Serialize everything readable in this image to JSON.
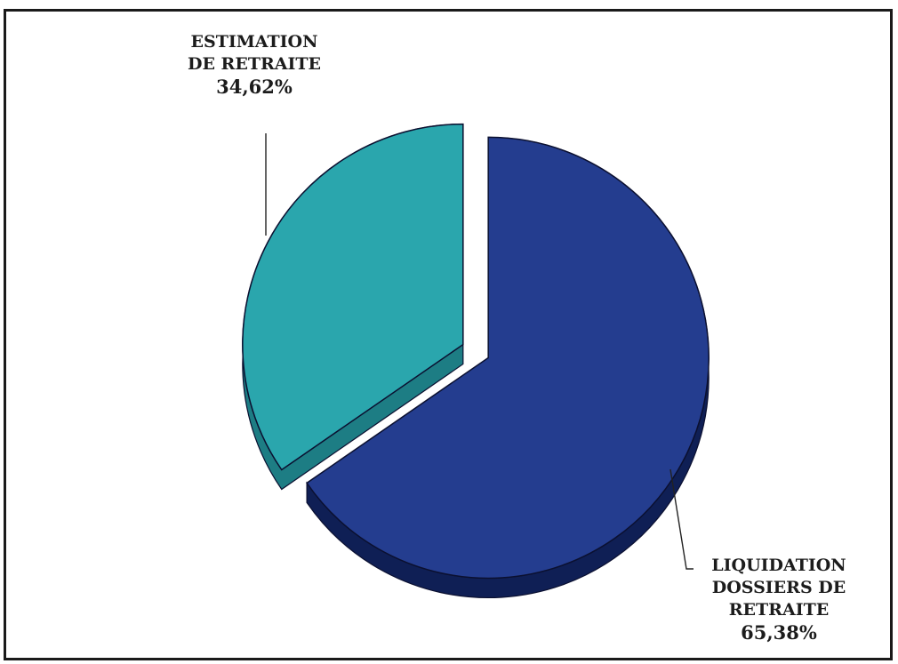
{
  "chart_data": {
    "type": "pie",
    "style": "3d-exploded",
    "title": "",
    "slices": [
      {
        "label_lines": [
          "ESTIMATION",
          "DE RETRAITE"
        ],
        "value": 34.62,
        "display": "34,62%",
        "color": "#2aa6ad",
        "shade": "#1d7d84"
      },
      {
        "label_lines": [
          "LIQUIDATION",
          "DOSSIERS DE",
          "RETRAITE"
        ],
        "value": 65.38,
        "display": "65,38%",
        "color": "#243d8f",
        "shade": "#0f1f55"
      }
    ],
    "legend": "none",
    "labels": "outside-with-leader-lines"
  }
}
